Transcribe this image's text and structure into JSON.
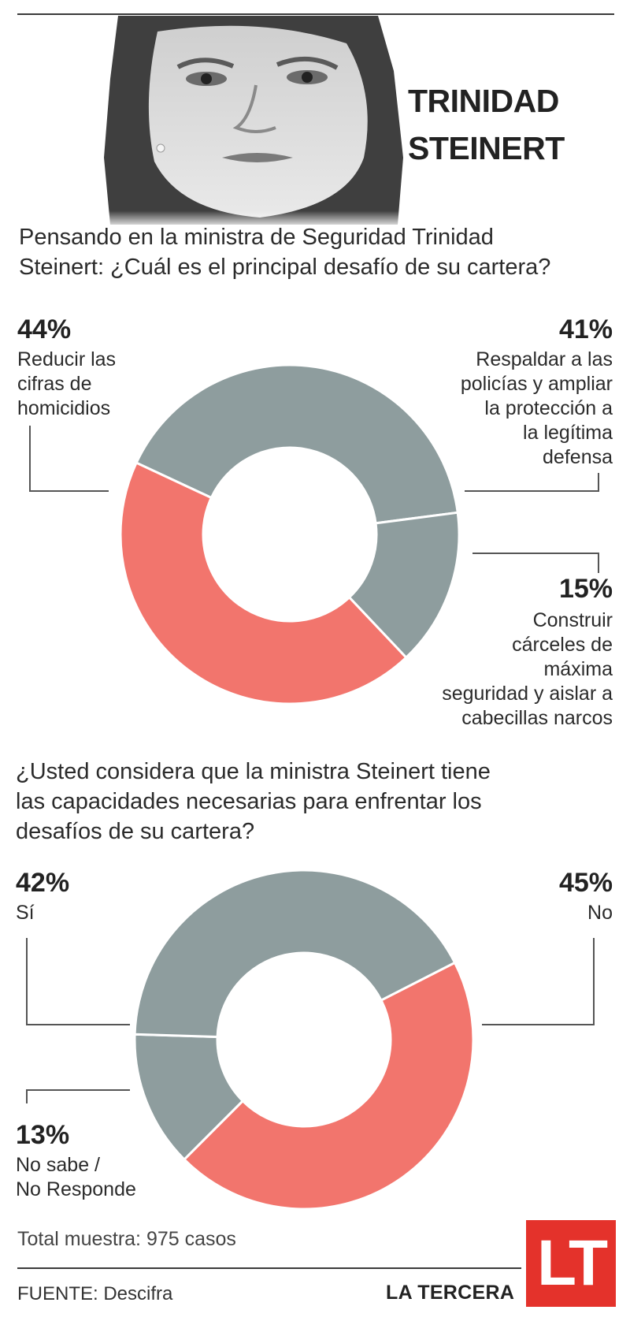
{
  "header": {
    "name_line1": "TRINIDAD",
    "name_line2": "STEINERT"
  },
  "colors": {
    "accent": "#f2756d",
    "neutral": "#8e9d9e",
    "logo": "#e4322b"
  },
  "chart_data": [
    {
      "type": "donut",
      "title": "Pensando en la ministra de Seguridad Trinidad Steinert: ¿Cuál es el principal desafío de su cartera?",
      "title_line1": "Pensando en la ministra de Seguridad Trinidad",
      "title_line2": "Steinert: ¿Cuál es el principal desafío de su cartera?",
      "slices": [
        {
          "pct_label": "44%",
          "value": 44,
          "color": "#f2756d",
          "label": "Reducir las cifras de homicidios",
          "label_lines": [
            "Reducir las",
            "cifras de",
            "homicidios"
          ]
        },
        {
          "pct_label": "41%",
          "value": 41,
          "color": "#8e9d9e",
          "label": "Respaldar a las policías y ampliar la protección a la legítima defensa",
          "label_lines": [
            "Respaldar a las",
            "policías y ampliar",
            "la protección a",
            "la legítima",
            "defensa"
          ]
        },
        {
          "pct_label": "15%",
          "value": 15,
          "color": "#8e9d9e",
          "label": "Construir cárceles de máxima seguridad y aislar a cabecillas narcos",
          "label_lines": [
            "Construir",
            "cárceles de",
            "máxima",
            "seguridad y aislar a",
            "cabecillas narcos"
          ]
        }
      ]
    },
    {
      "type": "donut",
      "title": "¿Usted considera que la ministra Steinert tiene las capacidades necesarias para enfrentar los desafíos de su cartera?",
      "title_line1": "¿Usted considera que la ministra Steinert tiene",
      "title_line2": "las capacidades necesarias para enfrentar los",
      "title_line3": "desafíos de su cartera?",
      "slices": [
        {
          "pct_label": "42%",
          "value": 42,
          "color": "#8e9d9e",
          "label": "Sí",
          "label_lines": [
            "Sí"
          ]
        },
        {
          "pct_label": "45%",
          "value": 45,
          "color": "#f2756d",
          "label": "No",
          "label_lines": [
            "No"
          ]
        },
        {
          "pct_label": "13%",
          "value": 13,
          "color": "#8e9d9e",
          "label": "No sabe / No Responde",
          "label_lines": [
            "No sabe /",
            "No Responde"
          ]
        }
      ]
    }
  ],
  "footer": {
    "total": "Total muestra: 975 casos",
    "source_label": "FUENTE:",
    "source_value": "Descifra",
    "brand": "LA TERCERA",
    "logo_text": "LT"
  }
}
